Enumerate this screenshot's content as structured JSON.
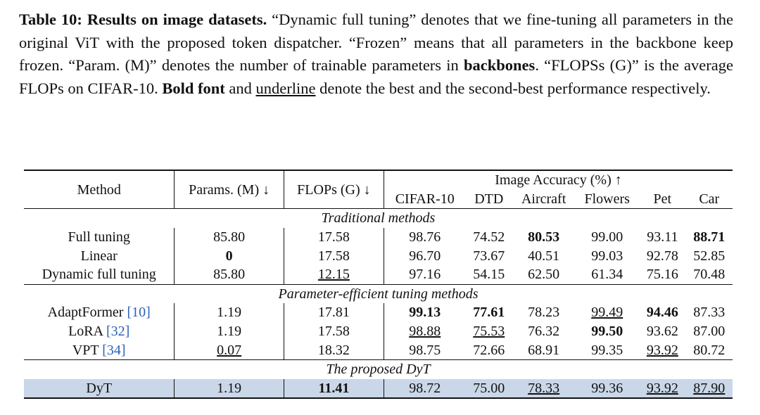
{
  "caption": {
    "segments": [
      "Table 10: Results on image datasets.",
      " “Dynamic full tuning” denotes that we fine-tuning all parameters in the original ViT with the proposed token dispatcher. “Frozen” means that all parameters in the backbone keep frozen. “Param. (M)” denotes the number of trainable parameters in ",
      "backbones",
      ". “FLOPSs (G)” is the average FLOPs on CIFAR-10. ",
      "Bold font",
      " and ",
      "underline",
      " denote the best and the second-best performance respectively."
    ]
  },
  "table": {
    "header": {
      "method": "Method",
      "params": "Params. (M) ↓",
      "flops": "FLOPs (G) ↓",
      "accuracy": "Image Accuracy (%) ↑",
      "datasets": [
        "CIFAR-10",
        "DTD",
        "Aircraft",
        "Flowers",
        "Pet",
        "Car"
      ]
    },
    "groups": [
      {
        "title": "Traditional methods",
        "rows": [
          {
            "cells": [
              "Full tuning",
              "85.80",
              "17.58",
              "98.76",
              "74.52",
              "80.53",
              "99.00",
              "93.11",
              "88.71"
            ],
            "bold": [
              5,
              8
            ],
            "underline": []
          },
          {
            "cells": [
              "Linear",
              "0",
              "17.58",
              "96.70",
              "73.67",
              "40.51",
              "99.03",
              "92.78",
              "52.85"
            ],
            "bold": [
              1
            ],
            "underline": []
          },
          {
            "cells": [
              "Dynamic full tuning",
              "85.80",
              "12.15",
              "97.16",
              "54.15",
              "62.50",
              "61.34",
              "75.16",
              "70.48"
            ],
            "bold": [],
            "underline": [
              2
            ]
          }
        ]
      },
      {
        "title": "Parameter-efficient tuning methods",
        "rows": [
          {
            "cells": [
              "AdaptFormer",
              "1.19",
              "17.81",
              "99.13",
              "77.61",
              "78.23",
              "99.49",
              "94.46",
              "87.33"
            ],
            "citation": "[10]",
            "bold": [
              3,
              4,
              7
            ],
            "underline": [
              6
            ]
          },
          {
            "cells": [
              "LoRA",
              "1.19",
              "17.58",
              "98.88",
              "75.53",
              "76.32",
              "99.50",
              "93.62",
              "87.00"
            ],
            "citation": "[32]",
            "bold": [
              6
            ],
            "underline": [
              3,
              4
            ]
          },
          {
            "cells": [
              "VPT",
              "0.07",
              "18.32",
              "98.75",
              "72.66",
              "68.91",
              "99.35",
              "93.92",
              "80.72"
            ],
            "citation": "[34]",
            "bold": [],
            "underline": [
              1,
              7
            ]
          }
        ]
      },
      {
        "title": "The proposed DyT",
        "rows": [
          {
            "cells": [
              "DyT",
              "1.19",
              "11.41",
              "98.72",
              "75.00",
              "78.33",
              "99.36",
              "93.92",
              "87.90"
            ],
            "bold": [
              2
            ],
            "underline": [
              5,
              7,
              8
            ],
            "highlight": true
          }
        ]
      }
    ]
  }
}
